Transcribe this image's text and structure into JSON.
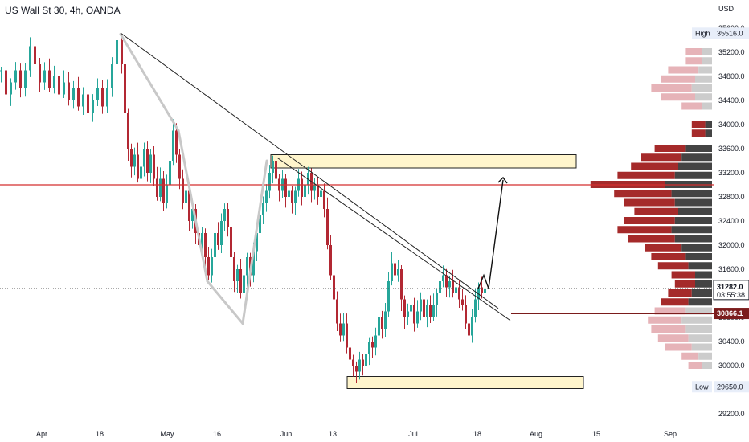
{
  "chart_data": {
    "type": "candlestick",
    "title": "US Wall St 30, 4h, OANDA",
    "currency": "USD",
    "ylim": [
      29000,
      35800
    ],
    "y_ticks": [
      "35600.0",
      "35200.0",
      "34800.0",
      "34400.0",
      "34000.0",
      "33600.0",
      "33200.0",
      "32800.0",
      "32400.0",
      "32000.0",
      "31600.0",
      "31200.0",
      "30800.0",
      "30400.0",
      "30000.0",
      "29200.0"
    ],
    "x_ticks": [
      "Apr",
      "18",
      "May",
      "16",
      "Jun",
      "13",
      "Jul",
      "18",
      "Aug",
      "15",
      "Sep"
    ],
    "labels": {
      "high_label": "High",
      "high_value": "35516.0",
      "low_label": "Low",
      "low_value": "29650.0",
      "current_price": "31282.0",
      "countdown": "03:55:38",
      "support_price": "30866.1"
    },
    "close_path": [
      [
        0,
        34900
      ],
      [
        6,
        34500
      ],
      [
        12,
        34700
      ],
      [
        18,
        34900
      ],
      [
        24,
        34600
      ],
      [
        30,
        34900
      ],
      [
        36,
        35300
      ],
      [
        42,
        35000
      ],
      [
        48,
        34700
      ],
      [
        54,
        34900
      ],
      [
        60,
        34600
      ],
      [
        66,
        34800
      ],
      [
        72,
        34500
      ],
      [
        78,
        34700
      ],
      [
        84,
        34400
      ],
      [
        90,
        34600
      ],
      [
        96,
        34300
      ],
      [
        102,
        34500
      ],
      [
        108,
        34200
      ],
      [
        114,
        34400
      ],
      [
        120,
        34600
      ],
      [
        126,
        34300
      ],
      [
        132,
        34600
      ],
      [
        138,
        35000
      ],
      [
        144,
        35400
      ],
      [
        150,
        35000
      ],
      [
        154,
        34200
      ],
      [
        158,
        33600
      ],
      [
        162,
        33300
      ],
      [
        166,
        33500
      ],
      [
        170,
        33100
      ],
      [
        174,
        33300
      ],
      [
        178,
        33600
      ],
      [
        182,
        33200
      ],
      [
        186,
        33500
      ],
      [
        190,
        33100
      ],
      [
        194,
        32800
      ],
      [
        198,
        33100
      ],
      [
        202,
        32700
      ],
      [
        206,
        33000
      ],
      [
        210,
        33400
      ],
      [
        214,
        33900
      ],
      [
        218,
        33500
      ],
      [
        222,
        33100
      ],
      [
        226,
        32700
      ],
      [
        230,
        32900
      ],
      [
        234,
        32400
      ],
      [
        238,
        32600
      ],
      [
        242,
        32200
      ],
      [
        246,
        32000
      ],
      [
        250,
        32200
      ],
      [
        254,
        31800
      ],
      [
        258,
        31500
      ],
      [
        262,
        31800
      ],
      [
        266,
        32200
      ],
      [
        270,
        32000
      ],
      [
        274,
        32400
      ],
      [
        278,
        32600
      ],
      [
        282,
        32300
      ],
      [
        286,
        31800
      ],
      [
        290,
        31400
      ],
      [
        294,
        31600
      ],
      [
        298,
        31200
      ],
      [
        302,
        31500
      ],
      [
        306,
        31800
      ],
      [
        310,
        31500
      ],
      [
        314,
        31900
      ],
      [
        318,
        32200
      ],
      [
        322,
        32500
      ],
      [
        326,
        32700
      ],
      [
        330,
        32900
      ],
      [
        334,
        33200
      ],
      [
        338,
        33400
      ],
      [
        342,
        33100
      ],
      [
        346,
        32900
      ],
      [
        350,
        33100
      ],
      [
        354,
        32800
      ],
      [
        358,
        32900
      ],
      [
        362,
        32700
      ],
      [
        366,
        32900
      ],
      [
        370,
        33100
      ],
      [
        374,
        32800
      ],
      [
        378,
        33000
      ],
      [
        382,
        33200
      ],
      [
        386,
        32900
      ],
      [
        390,
        33000
      ],
      [
        394,
        32800
      ],
      [
        398,
        32900
      ],
      [
        402,
        32600
      ],
      [
        406,
        32000
      ],
      [
        410,
        31500
      ],
      [
        414,
        31100
      ],
      [
        418,
        30700
      ],
      [
        422,
        30500
      ],
      [
        426,
        30700
      ],
      [
        430,
        30300
      ],
      [
        434,
        30100
      ],
      [
        438,
        30000
      ],
      [
        442,
        29900
      ],
      [
        446,
        30100
      ],
      [
        450,
        30000
      ],
      [
        454,
        30200
      ],
      [
        458,
        30400
      ],
      [
        462,
        30300
      ],
      [
        466,
        30500
      ],
      [
        470,
        30800
      ],
      [
        474,
        30600
      ],
      [
        478,
        30900
      ],
      [
        482,
        31400
      ],
      [
        486,
        31700
      ],
      [
        490,
        31500
      ],
      [
        494,
        31600
      ],
      [
        498,
        31100
      ],
      [
        502,
        30800
      ],
      [
        506,
        30900
      ],
      [
        510,
        31000
      ],
      [
        514,
        30700
      ],
      [
        518,
        30900
      ],
      [
        522,
        31100
      ],
      [
        526,
        30800
      ],
      [
        530,
        31000
      ],
      [
        534,
        30800
      ],
      [
        538,
        31000
      ],
      [
        542,
        31200
      ],
      [
        546,
        31400
      ],
      [
        550,
        31500
      ],
      [
        554,
        31300
      ],
      [
        558,
        31400
      ],
      [
        562,
        31200
      ],
      [
        566,
        31300
      ],
      [
        570,
        31100
      ],
      [
        574,
        31000
      ],
      [
        578,
        30700
      ],
      [
        582,
        30500
      ],
      [
        586,
        30800
      ],
      [
        590,
        31100
      ],
      [
        594,
        31300
      ],
      [
        598,
        31200
      ],
      [
        602,
        31282
      ]
    ],
    "volume_profile": [
      {
        "price": 35200,
        "up": 3,
        "down": 5
      },
      {
        "price": 35050,
        "up": 3,
        "down": 5
      },
      {
        "price": 34900,
        "up": 4,
        "down": 9
      },
      {
        "price": 34750,
        "up": 5,
        "down": 10
      },
      {
        "price": 34600,
        "up": 6,
        "down": 12
      },
      {
        "price": 34450,
        "up": 5,
        "down": 10
      },
      {
        "price": 34300,
        "up": 3,
        "down": 6
      },
      {
        "price": 34000,
        "up": 2,
        "down": 4
      },
      {
        "price": 33850,
        "up": 2,
        "down": 4
      },
      {
        "price": 33600,
        "up": 8,
        "down": 9
      },
      {
        "price": 33450,
        "up": 9,
        "down": 12
      },
      {
        "price": 33300,
        "up": 10,
        "down": 14
      },
      {
        "price": 33150,
        "up": 11,
        "down": 17
      },
      {
        "price": 33000,
        "up": 14,
        "down": 22
      },
      {
        "price": 32850,
        "up": 12,
        "down": 17
      },
      {
        "price": 32700,
        "up": 11,
        "down": 15
      },
      {
        "price": 32550,
        "up": 10,
        "down": 13
      },
      {
        "price": 32400,
        "up": 11,
        "down": 15
      },
      {
        "price": 32250,
        "up": 12,
        "down": 16
      },
      {
        "price": 32100,
        "up": 11,
        "down": 14
      },
      {
        "price": 31950,
        "up": 9,
        "down": 11
      },
      {
        "price": 31800,
        "up": 8,
        "down": 10
      },
      {
        "price": 31650,
        "up": 7,
        "down": 9
      },
      {
        "price": 31500,
        "up": 5,
        "down": 7
      },
      {
        "price": 31350,
        "up": 5,
        "down": 6
      },
      {
        "price": 31200,
        "up": 6,
        "down": 7
      },
      {
        "price": 31050,
        "up": 7,
        "down": 8
      },
      {
        "price": 30900,
        "up": 8,
        "down": 9
      },
      {
        "price": 30750,
        "up": 9,
        "down": 10
      },
      {
        "price": 30600,
        "up": 8,
        "down": 10
      },
      {
        "price": 30450,
        "up": 7,
        "down": 9
      },
      {
        "price": 30300,
        "up": 6,
        "down": 8
      },
      {
        "price": 30150,
        "up": 4,
        "down": 5
      },
      {
        "price": 30000,
        "up": 3,
        "down": 4
      }
    ],
    "colors": {
      "up": "#26a69a",
      "down": "#b22833",
      "wick": "#4a4a4a",
      "resistance": "#d32f2f",
      "zone": "#fff5cc",
      "support": "#7b1c1c"
    }
  }
}
